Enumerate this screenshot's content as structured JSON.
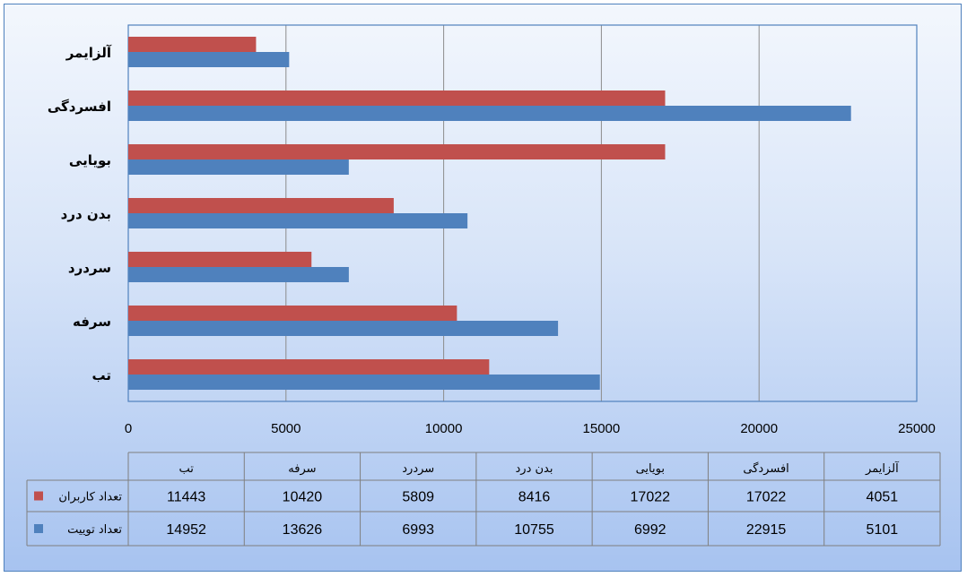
{
  "chart_data": {
    "type": "bar",
    "orientation": "horizontal",
    "categories": [
      "تب",
      "سرفه",
      "سردرد",
      "بدن درد",
      "بویایی",
      "افسردگی",
      "آلزایمر"
    ],
    "series": [
      {
        "name": "تعداد کاربران",
        "color": "#c0504d",
        "values": [
          11443,
          10420,
          5809,
          8416,
          17022,
          17022,
          4051
        ]
      },
      {
        "name": "تعداد توییت",
        "color": "#4f81bd",
        "values": [
          14952,
          13626,
          6993,
          10755,
          6992,
          22915,
          5101
        ]
      }
    ],
    "xlim": [
      0,
      25000
    ],
    "xticks": [
      0,
      5000,
      10000,
      15000,
      20000,
      25000
    ],
    "grid": true,
    "data_table": true
  }
}
